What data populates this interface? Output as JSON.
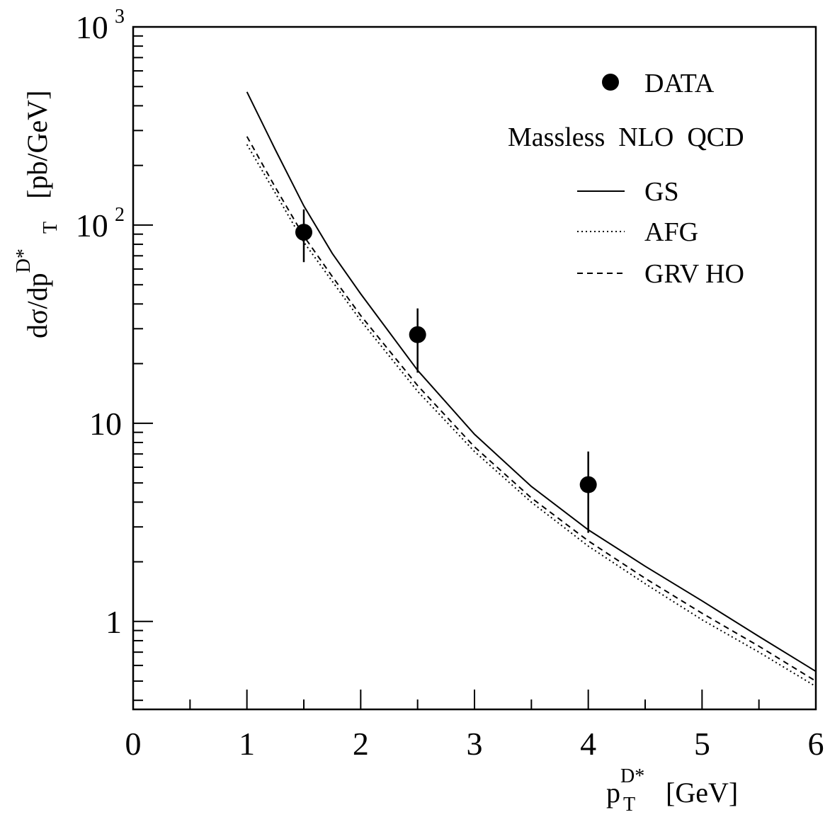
{
  "chart_data": {
    "type": "line",
    "title": "",
    "xlabel": {
      "base": "p",
      "sub": "T",
      "sup": "D*",
      "unit": "[GeV]"
    },
    "ylabel": {
      "prefix": "dσ/dp",
      "sub": "T",
      "sup": "D*",
      "unit": "[pb/GeV]"
    },
    "xlim": [
      0,
      6
    ],
    "ylim": [
      0.36,
      1000
    ],
    "yscale": "log",
    "grid": false,
    "legend_position": "top-right",
    "x_ticks": [
      "0",
      "1",
      "2",
      "3",
      "4",
      "5",
      "6"
    ],
    "y_ticks": [
      {
        "value": 1,
        "base": "1",
        "exp": ""
      },
      {
        "value": 10,
        "base": "10",
        "exp": ""
      },
      {
        "value": 100,
        "base": "10",
        "exp": "2"
      },
      {
        "value": 1000,
        "base": "10",
        "exp": "3"
      }
    ],
    "legend": {
      "data_label": "DATA",
      "theory_heading": "Massless  NLO  QCD"
    },
    "data_points": {
      "name": "DATA",
      "points": [
        {
          "x": 1.5,
          "y": 92,
          "y_low": 65,
          "y_high": 120
        },
        {
          "x": 2.5,
          "y": 28,
          "y_low": 18,
          "y_high": 38
        },
        {
          "x": 4.0,
          "y": 4.9,
          "y_low": 2.8,
          "y_high": 7.2
        }
      ]
    },
    "series": [
      {
        "name": "GS",
        "style": "solid",
        "x": [
          1.0,
          1.25,
          1.5,
          1.75,
          2.0,
          2.5,
          3.0,
          3.5,
          4.0,
          4.5,
          5.0,
          5.5,
          6.0
        ],
        "y": [
          470,
          240,
          125,
          72,
          45,
          18.5,
          8.8,
          4.8,
          2.9,
          1.9,
          1.27,
          0.84,
          0.56
        ]
      },
      {
        "name": "AFG",
        "style": "dotted",
        "x": [
          1.0,
          1.25,
          1.5,
          1.75,
          2.0,
          2.5,
          3.0,
          3.5,
          4.0,
          4.5,
          5.0,
          5.5,
          6.0
        ],
        "y": [
          255,
          145,
          82,
          52,
          33,
          14.5,
          7.2,
          4.0,
          2.4,
          1.55,
          1.02,
          0.7,
          0.47
        ]
      },
      {
        "name": "GRV HO",
        "style": "dashed",
        "x": [
          1.0,
          1.25,
          1.5,
          1.75,
          2.0,
          2.5,
          3.0,
          3.5,
          4.0,
          4.5,
          5.0,
          5.5,
          6.0
        ],
        "y": [
          280,
          155,
          88,
          55,
          35,
          15.5,
          7.6,
          4.2,
          2.55,
          1.65,
          1.1,
          0.75,
          0.5
        ]
      }
    ]
  }
}
